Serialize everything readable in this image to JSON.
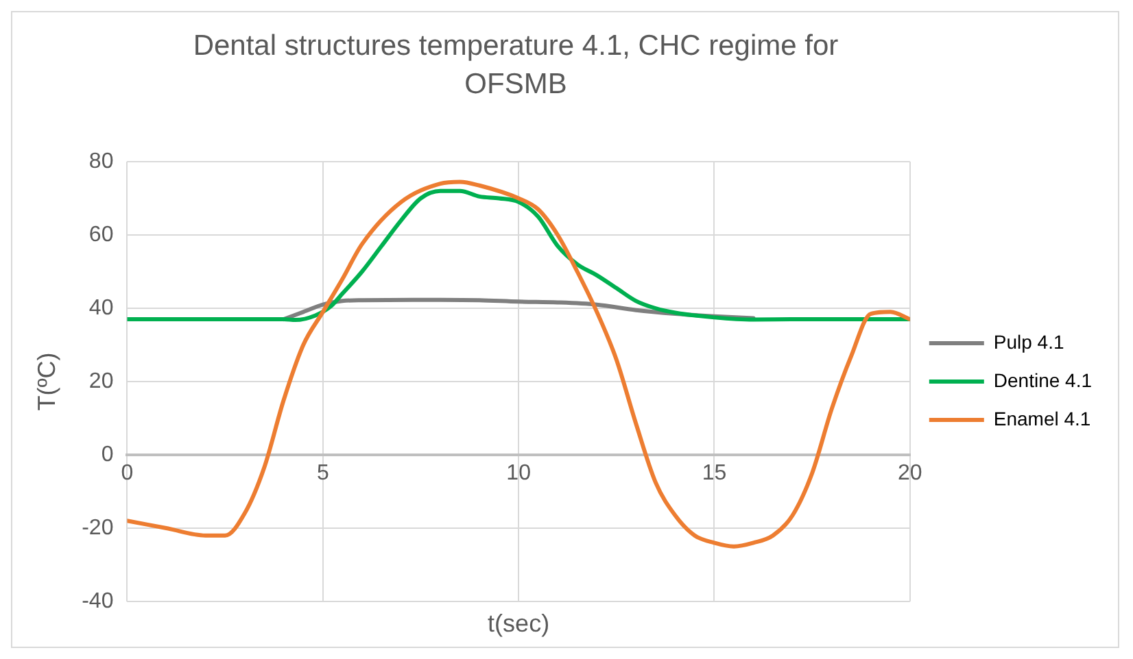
{
  "chart_data": {
    "type": "line",
    "title": "Dental structures temperature 4.1, CHC regime for OFSMB",
    "xlabel": "t(sec)",
    "ylabel": "T(ºC)",
    "xlim": [
      0,
      20
    ],
    "xticks": [
      0,
      5,
      10,
      15,
      20
    ],
    "ylim": [
      -40,
      80
    ],
    "yticks": [
      -40,
      -20,
      0,
      20,
      40,
      60,
      80
    ],
    "grid": true,
    "legend": "right",
    "marker": "none",
    "line_style": "solid",
    "series": [
      {
        "name": "Pulp 4.1",
        "color": "#7f7f7f",
        "x": [
          4,
          4.5,
          5,
          5.5,
          6,
          8,
          9,
          10,
          11,
          12,
          13,
          14,
          15,
          16
        ],
        "values": [
          37,
          39,
          41,
          42,
          42.2,
          42.3,
          42.2,
          41.8,
          41.6,
          41,
          39.5,
          38.5,
          37.8,
          37.3
        ]
      },
      {
        "name": "Dentine 4.1",
        "color": "#00b050",
        "x": [
          0,
          1,
          2,
          3,
          4,
          4.3,
          4.8,
          5.2,
          5.5,
          6,
          6.5,
          7,
          7.5,
          8,
          8.5,
          9,
          9.5,
          10,
          10.5,
          11,
          11.5,
          12,
          12.5,
          13,
          13.5,
          14,
          15,
          16,
          17,
          18,
          19,
          20
        ],
        "values": [
          37,
          37,
          37,
          37,
          37,
          36.8,
          38,
          40.5,
          44,
          50,
          57,
          64,
          70,
          72,
          72,
          70.5,
          70,
          69,
          65,
          57,
          52,
          49,
          45.5,
          42,
          40,
          38.8,
          37.5,
          36.9,
          37,
          37,
          37,
          37
        ]
      },
      {
        "name": "Enamel 4.1",
        "color": "#ed7d31",
        "x": [
          0,
          1,
          2,
          2.5,
          3,
          3.5,
          4,
          4.5,
          5,
          5.5,
          6,
          7,
          8,
          8.5,
          9,
          10,
          10.5,
          11,
          11.5,
          12,
          12.5,
          13,
          13.5,
          14,
          14.5,
          15,
          15.5,
          16,
          16.5,
          17,
          17.5,
          18,
          18.5,
          19,
          19.5,
          20
        ],
        "values": [
          -18,
          -20,
          -22,
          -22,
          -16,
          -3.5,
          15,
          30,
          39,
          48,
          57.5,
          69,
          74,
          74.5,
          73.5,
          70,
          67,
          60,
          50,
          39,
          26,
          8.5,
          -7.5,
          -16.5,
          -22,
          -24,
          -25,
          -24,
          -22,
          -16.5,
          -5,
          12.5,
          27,
          38.5,
          39,
          37
        ]
      }
    ]
  }
}
